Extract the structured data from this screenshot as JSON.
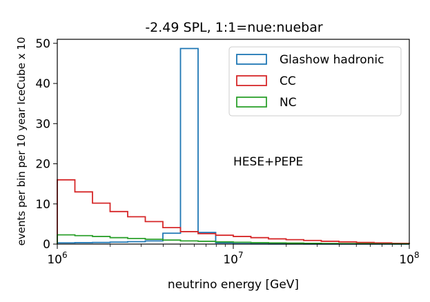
{
  "chart_data": {
    "type": "step",
    "title": "-2.49 SPL, 1:1=nue:nuebar",
    "xlabel": "neutrino energy [GeV]",
    "ylabel": "events per bin per 10 year IceCube x 10",
    "xscale": "log",
    "xlim": [
      1000000,
      100000000
    ],
    "ylim": [
      0,
      51
    ],
    "yticks": [
      0,
      10,
      20,
      30,
      40,
      50
    ],
    "xtick_labels": [
      {
        "base": "10",
        "exp": "6",
        "value": 1000000
      },
      {
        "base": "10",
        "exp": "7",
        "value": 10000000
      },
      {
        "base": "10",
        "exp": "8",
        "value": 100000000
      }
    ],
    "bin_edges_log10": [
      6.0,
      6.1,
      6.2,
      6.3,
      6.4,
      6.5,
      6.6,
      6.7,
      6.8,
      6.9,
      7.0,
      7.1,
      7.2,
      7.3,
      7.4,
      7.5,
      7.6,
      7.7,
      7.8,
      7.9,
      8.0
    ],
    "legend_position": "upper-right",
    "annotation": "HESE+PEPE",
    "series": [
      {
        "name": "Glashow hadronic",
        "color": "#1f77b4",
        "values": [
          0.3,
          0.35,
          0.4,
          0.5,
          0.6,
          0.8,
          2.7,
          48.7,
          2.9,
          0.3,
          0.1,
          0.05,
          0.03,
          0.02,
          0.01,
          0,
          0,
          0,
          0,
          0
        ]
      },
      {
        "name": "CC",
        "color": "#d62728",
        "values": [
          16.0,
          13.0,
          10.2,
          8.1,
          6.8,
          5.6,
          4.1,
          3.1,
          2.6,
          2.2,
          1.9,
          1.6,
          1.3,
          1.1,
          0.9,
          0.7,
          0.55,
          0.4,
          0.3,
          0.2
        ]
      },
      {
        "name": "NC",
        "color": "#2ca02c",
        "values": [
          2.3,
          2.1,
          1.9,
          1.6,
          1.4,
          1.2,
          1.0,
          0.8,
          0.7,
          0.55,
          0.45,
          0.35,
          0.3,
          0.25,
          0.2,
          0.15,
          0.12,
          0.1,
          0.07,
          0.05
        ]
      }
    ]
  }
}
